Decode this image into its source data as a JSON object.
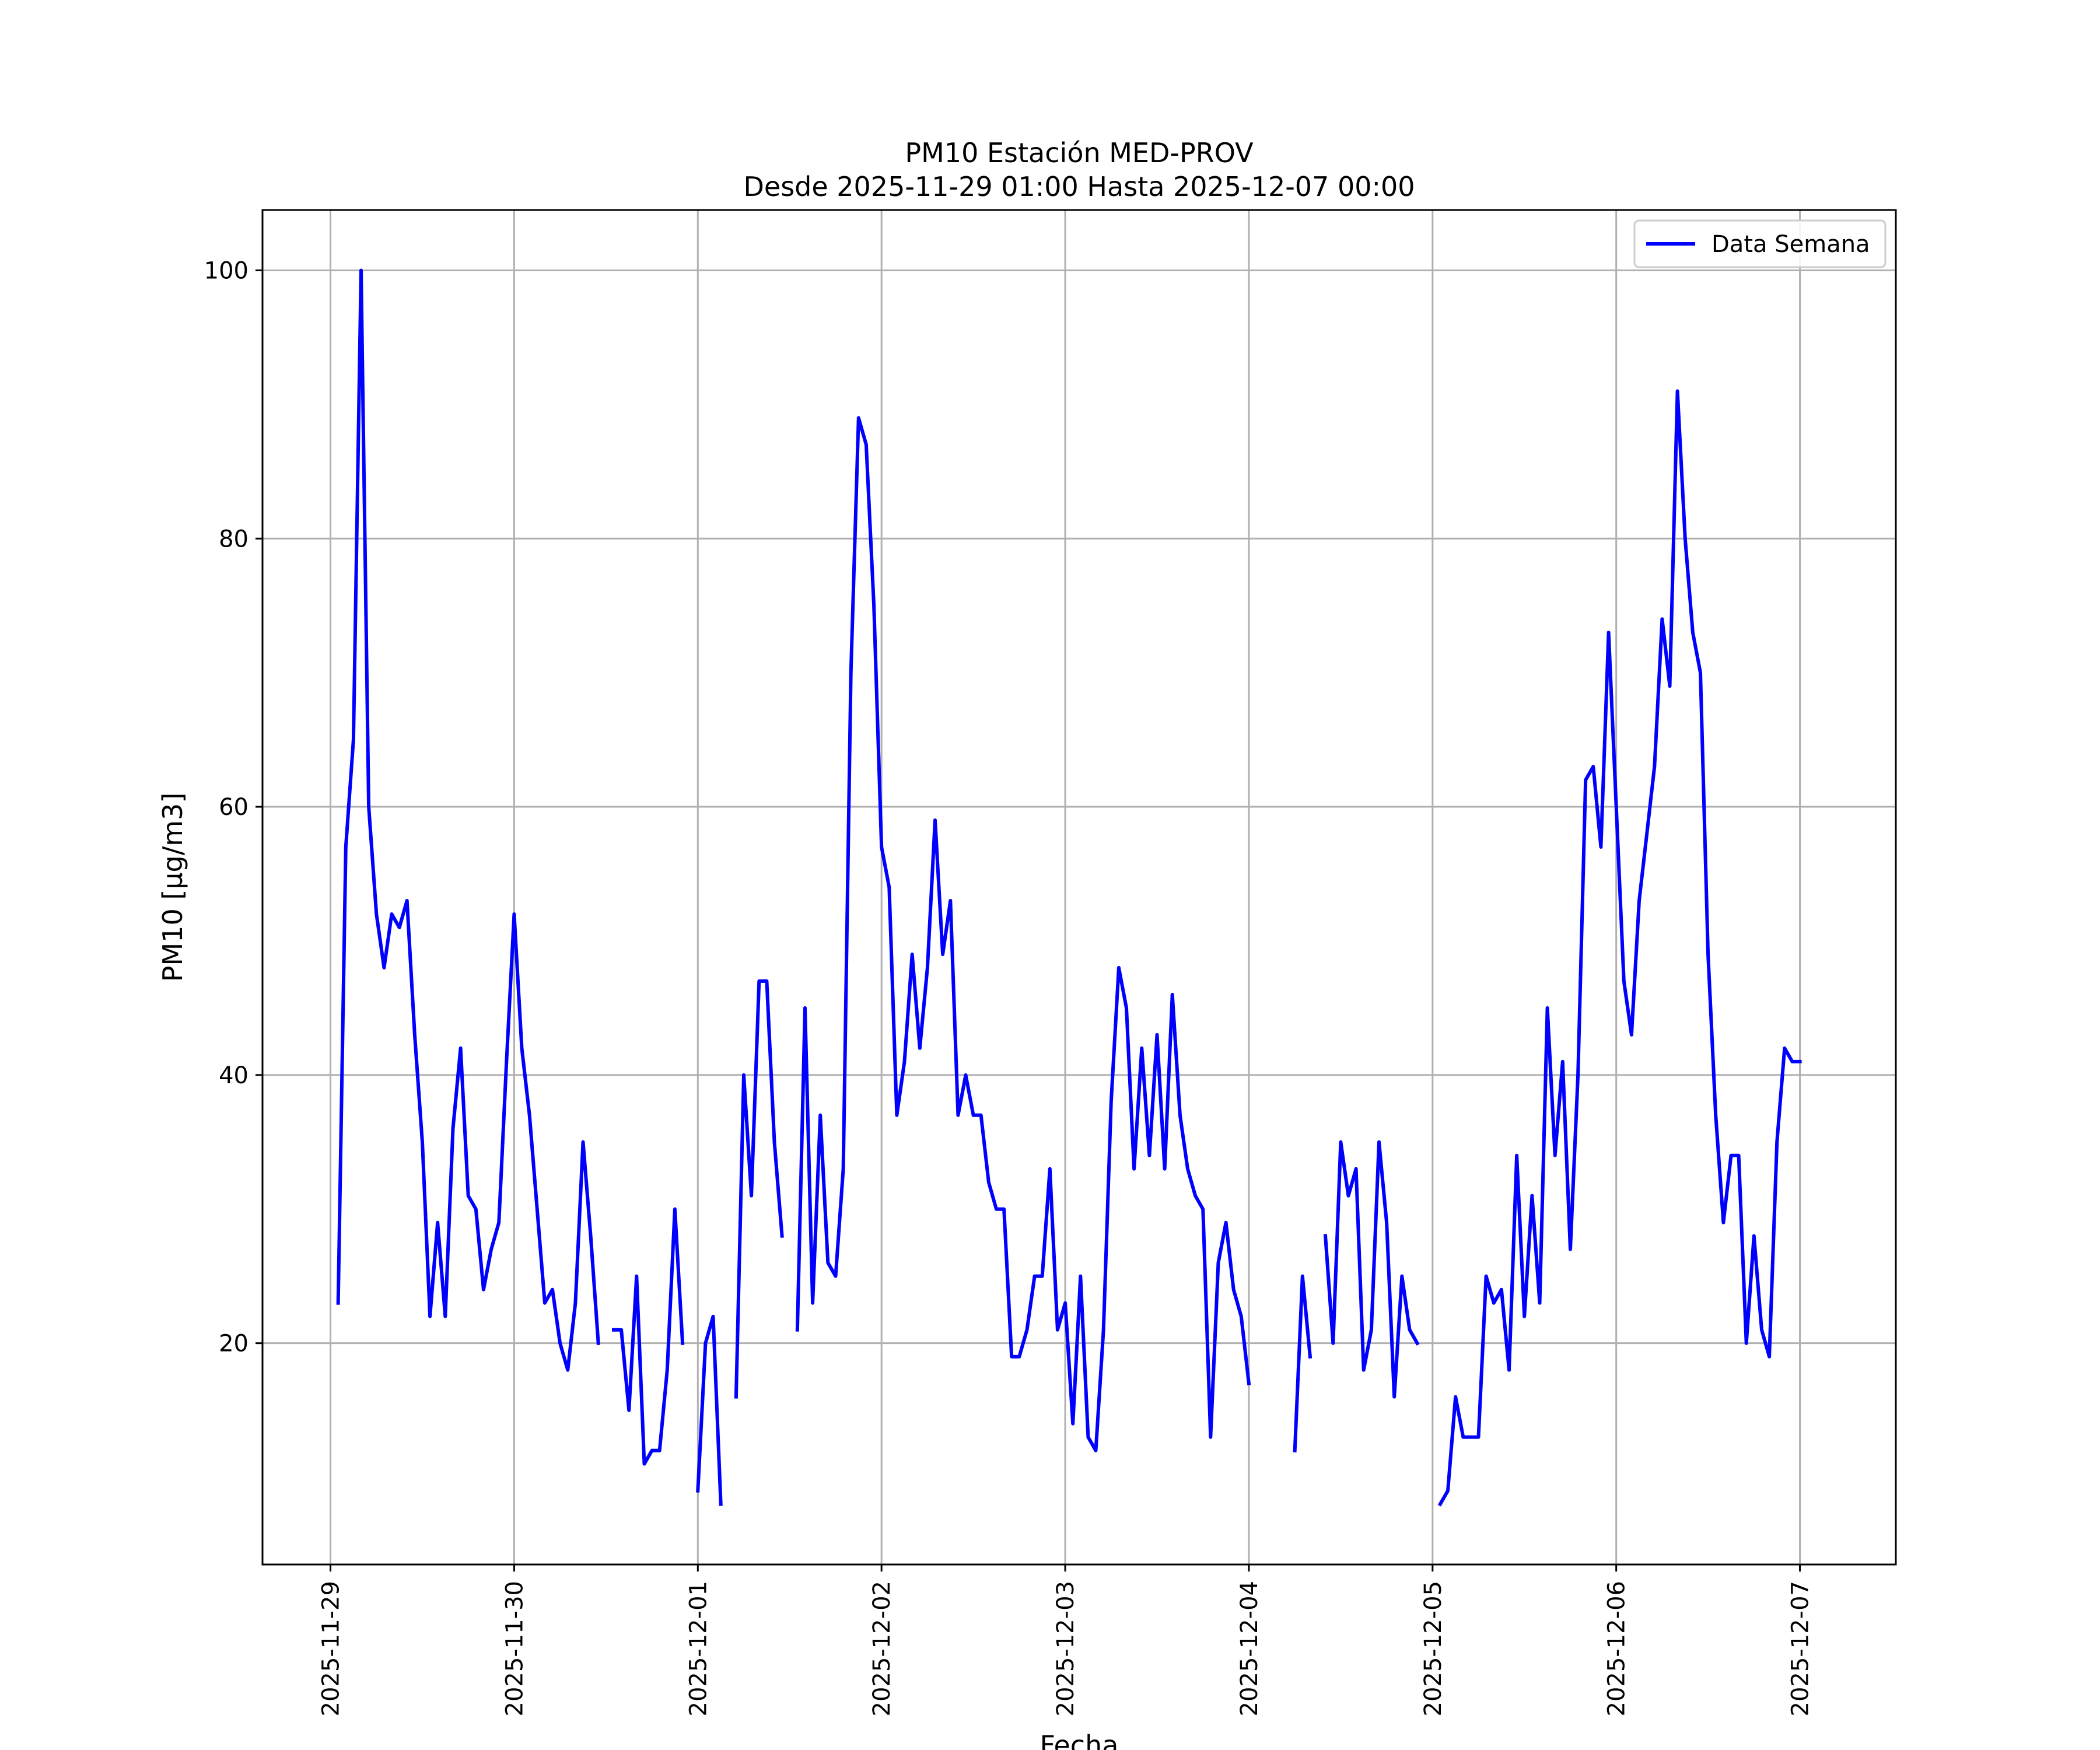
{
  "chart_data": {
    "type": "line",
    "title": "PM10 Estación MED-PROV",
    "subtitle": "Desde 2025-11-29 01:00 Hasta 2025-12-07 00:00",
    "xlabel": "Fecha",
    "ylabel": "PM10 [μg/m3]",
    "x_start": "2025-11-29 01:00",
    "x_step": "1 hour",
    "xlim": [
      "2025-11-28 15:07",
      "2025-12-07 12:32"
    ],
    "ylim": [
      3.5,
      104.5
    ],
    "x_ticks": [
      "2025-11-29",
      "2025-11-30",
      "2025-12-01",
      "2025-12-02",
      "2025-12-03",
      "2025-12-04",
      "2025-12-05",
      "2025-12-06",
      "2025-12-07"
    ],
    "y_ticks": [
      20,
      40,
      60,
      80,
      100
    ],
    "grid": true,
    "legend_placement": "top-right",
    "colors": {
      "series": "#0000ff",
      "grid": "#b0b0b0",
      "axes": "#000000"
    },
    "series": [
      {
        "name": "Data Semana",
        "values": [
          23,
          57,
          65,
          100,
          60,
          52,
          48,
          52,
          51,
          53,
          43,
          35,
          22,
          29,
          22,
          36,
          42,
          31,
          30,
          24,
          27,
          29,
          41,
          52,
          42,
          37,
          30,
          23,
          24,
          20,
          18,
          23,
          35,
          28,
          20,
          null,
          21,
          21,
          15,
          25,
          11,
          12,
          12,
          18,
          30,
          20,
          null,
          9,
          20,
          22,
          8,
          null,
          16,
          40,
          31,
          47,
          47,
          35,
          28,
          null,
          21,
          45,
          23,
          37,
          26,
          25,
          33,
          70,
          89,
          87,
          75,
          57,
          54,
          37,
          41,
          49,
          42,
          48,
          59,
          49,
          53,
          37,
          40,
          37,
          37,
          32,
          30,
          30,
          19,
          19,
          21,
          25,
          25,
          33,
          21,
          23,
          14,
          25,
          13,
          12,
          21,
          38,
          48,
          45,
          33,
          42,
          34,
          43,
          33,
          46,
          37,
          33,
          31,
          30,
          13,
          26,
          29,
          24,
          22,
          17,
          null,
          null,
          null,
          null,
          null,
          12,
          25,
          19,
          null,
          28,
          20,
          35,
          31,
          33,
          18,
          21,
          35,
          29,
          16,
          25,
          21,
          20,
          null,
          null,
          8,
          9,
          16,
          13,
          13,
          13,
          25,
          23,
          24,
          18,
          34,
          22,
          31,
          23,
          45,
          34,
          41,
          27,
          40,
          62,
          63,
          57,
          73,
          60,
          47,
          43,
          53,
          58,
          63,
          74,
          69,
          91,
          80,
          73,
          70,
          49,
          37,
          29,
          34,
          34,
          20,
          28,
          21,
          19,
          35,
          42,
          41,
          41
        ]
      }
    ]
  }
}
